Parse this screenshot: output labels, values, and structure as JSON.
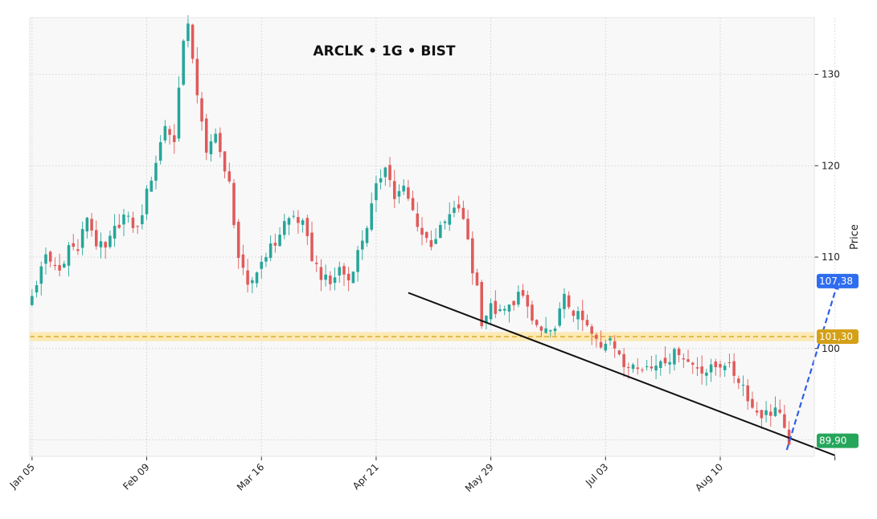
{
  "chart_data": {
    "type": "candlestick",
    "title": "ARCLK • 1G • BIST",
    "xlabel": "",
    "ylabel": "Price",
    "ylim": [
      88.2,
      136.2
    ],
    "yticks": [
      100,
      110,
      120,
      130
    ],
    "xlim": [
      -0.5,
      170.5
    ],
    "xticks": [
      {
        "label": "Jan 05",
        "at": 0
      },
      {
        "label": "Feb 09",
        "at": 25
      },
      {
        "label": "Mar 16",
        "at": 50
      },
      {
        "label": "Apr 21",
        "at": 75
      },
      {
        "label": "May 29",
        "at": 100
      },
      {
        "label": "Jul 03",
        "at": 125
      },
      {
        "label": "Aug 10",
        "at": 150
      },
      {
        "label": "",
        "at": 175
      }
    ],
    "grid": true,
    "colors": {
      "up": "#26a69a",
      "down": "#e05a5a",
      "trendline": "#111111",
      "projection": "#2f5fe8",
      "level": "#d4a017",
      "level_zone": "#fde6a8",
      "last_price": "#26a65b",
      "target": "#2f6df0",
      "plot_bg": "#f8f8f8"
    },
    "annotations": {
      "current_price": {
        "value": 89.9,
        "label": "89,90"
      },
      "target_price": {
        "value": 107.38,
        "label": "107,38"
      },
      "level": {
        "value": 101.3,
        "label": "101,30",
        "zone": [
          100.8,
          101.8
        ]
      },
      "trendline": {
        "from": [
          82,
          106.1
        ],
        "to": [
          175,
          88.3
        ]
      },
      "projection": {
        "from": [
          164.5,
          88.9
        ],
        "to": [
          175.5,
          107.0
        ]
      }
    },
    "anchors": [
      [
        0,
        105.8
      ],
      [
        3,
        110.0
      ],
      [
        6,
        108.5
      ],
      [
        8,
        111.2
      ],
      [
        10,
        110.8
      ],
      [
        12,
        114.5
      ],
      [
        14,
        111.5
      ],
      [
        16,
        110.8
      ],
      [
        18,
        113.0
      ],
      [
        20,
        114.5
      ],
      [
        23,
        113.0
      ],
      [
        25,
        117.0
      ],
      [
        27,
        120.5
      ],
      [
        29,
        124.5
      ],
      [
        31,
        122.5
      ],
      [
        32,
        129.0
      ],
      [
        33,
        133.5
      ],
      [
        34,
        135.0
      ],
      [
        35,
        132.0
      ],
      [
        36,
        128.0
      ],
      [
        38,
        121.0
      ],
      [
        40,
        124.0
      ],
      [
        42,
        119.0
      ],
      [
        43,
        118.0
      ],
      [
        45,
        110.0
      ],
      [
        47,
        106.5
      ],
      [
        49,
        108.5
      ],
      [
        51,
        110.5
      ],
      [
        53,
        111.5
      ],
      [
        55,
        113.8
      ],
      [
        57,
        114.5
      ],
      [
        59,
        113.5
      ],
      [
        61,
        110.0
      ],
      [
        63,
        108.0
      ],
      [
        65,
        107.0
      ],
      [
        67,
        108.8
      ],
      [
        69,
        107.5
      ],
      [
        71,
        110.5
      ],
      [
        73,
        113.5
      ],
      [
        75,
        117.5
      ],
      [
        77,
        120.3
      ],
      [
        79,
        116.5
      ],
      [
        81,
        117.5
      ],
      [
        83,
        115.0
      ],
      [
        85,
        112.5
      ],
      [
        87,
        111.5
      ],
      [
        89,
        113.0
      ],
      [
        91,
        114.5
      ],
      [
        93,
        115.5
      ],
      [
        95,
        112.0
      ],
      [
        96,
        108.5
      ],
      [
        97,
        106.8
      ],
      [
        98,
        103.0
      ],
      [
        100,
        104.5
      ],
      [
        102,
        103.8
      ],
      [
        104,
        104.5
      ],
      [
        106,
        106.0
      ],
      [
        108,
        104.5
      ],
      [
        109,
        103.0
      ],
      [
        111,
        101.8
      ],
      [
        113,
        101.5
      ],
      [
        115,
        104.0
      ],
      [
        116,
        105.5
      ],
      [
        118,
        104.0
      ],
      [
        120,
        103.0
      ],
      [
        122,
        101.5
      ],
      [
        124,
        100.0
      ],
      [
        126,
        101.5
      ],
      [
        128,
        99.5
      ],
      [
        129,
        97.5
      ],
      [
        131,
        98.5
      ],
      [
        133,
        98.2
      ],
      [
        135,
        97.8
      ],
      [
        137,
        98.8
      ],
      [
        139,
        99.0
      ],
      [
        141,
        99.8
      ],
      [
        143,
        98.5
      ],
      [
        145,
        98.0
      ],
      [
        147,
        97.5
      ],
      [
        149,
        98.0
      ],
      [
        151,
        98.5
      ],
      [
        153,
        97.2
      ],
      [
        155,
        96.0
      ],
      [
        157,
        93.5
      ],
      [
        159,
        92.8
      ],
      [
        161,
        93.0
      ],
      [
        162,
        93.5
      ],
      [
        163,
        92.5
      ],
      [
        164,
        90.8
      ],
      [
        165,
        89.9
      ]
    ]
  }
}
